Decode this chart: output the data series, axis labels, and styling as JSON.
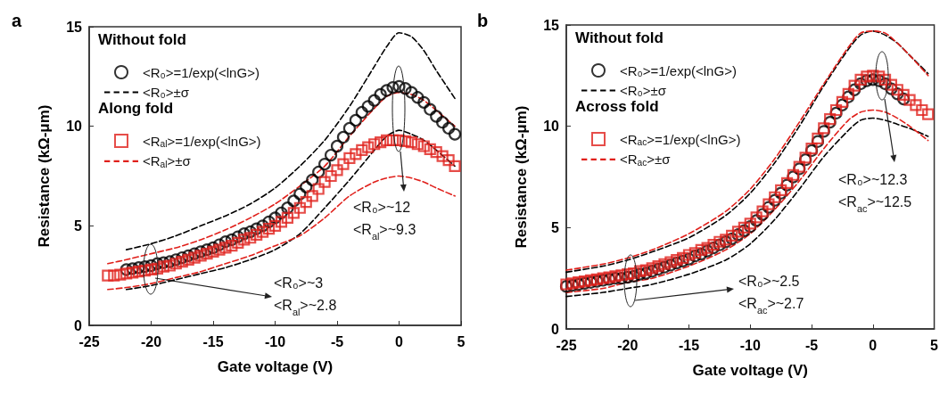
{
  "chart_data": [
    {
      "type": "scatter",
      "title": "a",
      "xlabel": "Gate voltage (V)",
      "ylabel": "Resistance (kΩ-μm)",
      "xlim": [
        -25,
        5
      ],
      "xticks": [
        -25,
        -20,
        -15,
        -10,
        -5,
        0,
        5
      ],
      "ylim": [
        0,
        15
      ],
      "yticks": [
        0,
        5,
        10,
        15
      ],
      "grid": false,
      "legend": "top left",
      "annotations": [
        "Without fold",
        "Along fold",
        "<R₀>~12\n<R$_{al}$>~9.3",
        "<R₀>~3\n<R$_{al}$>~2.8"
      ],
      "series": [
        {
          "name": "<R₀>=1/exp(<lnG>)",
          "marker": "circle",
          "color": "#000000",
          "x": [
            -22,
            -21.5,
            -21,
            -20.5,
            -20,
            -19.5,
            -19,
            -18.5,
            -18,
            -17.5,
            -17,
            -16.5,
            -16,
            -15.5,
            -15,
            -14.5,
            -14,
            -13.5,
            -13,
            -12.5,
            -12,
            -11.5,
            -11,
            -10.5,
            -10,
            -9.5,
            -9,
            -8.5,
            -8,
            -7.5,
            -7,
            -6.5,
            -6,
            -5.5,
            -5,
            -4.5,
            -4,
            -3.5,
            -3,
            -2.5,
            -2,
            -1.5,
            -1,
            -0.5,
            0,
            0.5,
            1,
            1.5,
            2,
            2.5,
            3,
            3.5,
            4,
            4.5
          ],
          "values": [
            2.8,
            2.85,
            2.9,
            2.95,
            3.0,
            3.1,
            3.15,
            3.2,
            3.3,
            3.4,
            3.5,
            3.6,
            3.7,
            3.8,
            3.9,
            4.05,
            4.2,
            4.3,
            4.45,
            4.6,
            4.7,
            4.85,
            5.0,
            5.2,
            5.4,
            5.65,
            5.9,
            6.25,
            6.6,
            6.95,
            7.3,
            7.7,
            8.1,
            8.55,
            9.0,
            9.45,
            9.9,
            10.3,
            10.7,
            11.0,
            11.3,
            11.6,
            11.8,
            11.95,
            12.0,
            11.9,
            11.7,
            11.45,
            11.2,
            10.85,
            10.5,
            10.2,
            9.9,
            9.6
          ]
        },
        {
          "name": "<R₀>±σ",
          "type": "line",
          "marker": "none",
          "line_style": "dashed",
          "color": "#000000",
          "x": [
            -22,
            -20,
            -18,
            -16,
            -14,
            -12,
            -10,
            -8,
            -6,
            -4,
            -2,
            -1,
            0,
            1,
            2,
            3,
            4.5
          ],
          "values": [
            3.8,
            4.1,
            4.5,
            5.0,
            5.5,
            6.1,
            6.9,
            8.0,
            9.3,
            11.0,
            13.0,
            14.0,
            14.7,
            14.5,
            13.8,
            12.8,
            11.4
          ]
        },
        {
          "type": "line",
          "marker": "none",
          "line_style": "dashed",
          "color": "#000000",
          "x": [
            -22,
            -20,
            -18,
            -16,
            -14,
            -12,
            -10,
            -8,
            -6,
            -4,
            -2,
            -1,
            0,
            1,
            2,
            3,
            4.5
          ],
          "values": [
            1.8,
            2.0,
            2.3,
            2.6,
            2.9,
            3.3,
            3.8,
            4.6,
            5.9,
            7.3,
            8.8,
            9.5,
            9.8,
            9.6,
            9.3,
            8.8,
            8.0
          ]
        },
        {
          "name": "<R$_{al}$>=1/exp(<lnG>)",
          "marker": "square",
          "color": "#e0201b",
          "x": [
            -23.5,
            -23,
            -22.5,
            -22,
            -21.5,
            -21,
            -20.5,
            -20,
            -19.5,
            -19,
            -18.5,
            -18,
            -17.5,
            -17,
            -16.5,
            -16,
            -15.5,
            -15,
            -14.5,
            -14,
            -13.5,
            -13,
            -12.5,
            -12,
            -11.5,
            -11,
            -10.5,
            -10,
            -9.5,
            -9,
            -8.5,
            -8,
            -7.5,
            -7,
            -6.5,
            -6,
            -5.5,
            -5,
            -4.5,
            -4,
            -3.5,
            -3,
            -2.5,
            -2,
            -1.5,
            -1,
            -0.5,
            0,
            0.5,
            1,
            1.5,
            2,
            2.5,
            3,
            3.5,
            4,
            4.5
          ],
          "values": [
            2.5,
            2.5,
            2.55,
            2.6,
            2.65,
            2.7,
            2.75,
            2.8,
            2.85,
            2.95,
            3.0,
            3.1,
            3.2,
            3.3,
            3.4,
            3.5,
            3.6,
            3.7,
            3.8,
            3.9,
            4.0,
            4.15,
            4.3,
            4.4,
            4.55,
            4.7,
            4.85,
            5.0,
            5.2,
            5.4,
            5.65,
            5.9,
            6.2,
            6.5,
            6.85,
            7.2,
            7.5,
            7.8,
            8.1,
            8.4,
            8.6,
            8.8,
            8.95,
            9.1,
            9.2,
            9.3,
            9.3,
            9.3,
            9.25,
            9.2,
            9.1,
            9.0,
            8.85,
            8.7,
            8.5,
            8.3,
            8.0
          ]
        },
        {
          "name": "<R$_{al}$>±σ",
          "type": "line",
          "marker": "none",
          "line_style": "dashed",
          "color": "#e0201b",
          "x": [
            -23.5,
            -22,
            -20,
            -18,
            -16,
            -14,
            -12,
            -10,
            -8,
            -6,
            -4,
            -2,
            -1,
            0,
            1,
            2,
            3,
            4.5
          ],
          "values": [
            3.1,
            3.3,
            3.6,
            3.9,
            4.3,
            4.8,
            5.4,
            6.1,
            7.0,
            8.0,
            9.5,
            10.9,
            11.5,
            11.7,
            11.6,
            11.3,
            10.8,
            10.0
          ]
        },
        {
          "type": "line",
          "marker": "none",
          "line_style": "dashed",
          "color": "#e0201b",
          "x": [
            -23.5,
            -22,
            -20,
            -18,
            -16,
            -14,
            -12,
            -10,
            -8,
            -6,
            -4,
            -2,
            -1,
            0,
            1,
            2,
            3,
            4.5
          ],
          "values": [
            1.8,
            1.9,
            2.1,
            2.4,
            2.7,
            3.1,
            3.5,
            4.0,
            4.5,
            5.4,
            6.5,
            7.2,
            7.4,
            7.5,
            7.4,
            7.2,
            6.9,
            6.5
          ]
        }
      ]
    },
    {
      "type": "scatter",
      "title": "b",
      "xlabel": "Gate voltage (V)",
      "ylabel": "Resistance (kΩ-μm)",
      "xlim": [
        -25,
        5
      ],
      "xticks": [
        -25,
        -20,
        -15,
        -10,
        -5,
        0,
        5
      ],
      "ylim": [
        0,
        15
      ],
      "yticks": [
        0,
        5,
        10,
        15
      ],
      "grid": false,
      "legend": "top left",
      "annotations": [
        "Without fold",
        "Across fold",
        "<R₀>~12.3\n<R$_{ac}$>~12.5",
        "<R₀>~2.5\n<R$_{ac}$>~2.7"
      ],
      "series": [
        {
          "name": "<R₀>=1/exp(<lnG>)",
          "marker": "circle",
          "color": "#000000",
          "x": [
            -25,
            -24.5,
            -24,
            -23.5,
            -23,
            -22.5,
            -22,
            -21.5,
            -21,
            -20.5,
            -20,
            -19.5,
            -19,
            -18.5,
            -18,
            -17.5,
            -17,
            -16.5,
            -16,
            -15.5,
            -15,
            -14.5,
            -14,
            -13.5,
            -13,
            -12.5,
            -12,
            -11.5,
            -11,
            -10.5,
            -10,
            -9.5,
            -9,
            -8.5,
            -8,
            -7.5,
            -7,
            -6.5,
            -6,
            -5.5,
            -5,
            -4.5,
            -4,
            -3.5,
            -3,
            -2.5,
            -2,
            -1.5,
            -1,
            -0.5,
            0,
            0.5,
            1,
            1.5,
            2,
            2.5
          ],
          "values": [
            2.1,
            2.15,
            2.2,
            2.25,
            2.3,
            2.35,
            2.4,
            2.45,
            2.5,
            2.5,
            2.55,
            2.6,
            2.7,
            2.75,
            2.85,
            2.95,
            3.05,
            3.15,
            3.25,
            3.35,
            3.45,
            3.6,
            3.7,
            3.85,
            4.0,
            4.15,
            4.3,
            4.45,
            4.65,
            4.85,
            5.05,
            5.35,
            5.65,
            6.0,
            6.35,
            6.7,
            7.1,
            7.5,
            7.9,
            8.35,
            8.8,
            9.25,
            9.75,
            10.2,
            10.65,
            11.05,
            11.45,
            11.8,
            12.1,
            12.25,
            12.3,
            12.25,
            12.1,
            11.85,
            11.6,
            11.35
          ]
        },
        {
          "name": "<R₀>±σ",
          "type": "line",
          "marker": "none",
          "line_style": "dashed",
          "color": "#000000",
          "x": [
            -25,
            -22,
            -20,
            -18,
            -15,
            -12,
            -10,
            -8,
            -6,
            -4,
            -2,
            -1,
            0,
            1,
            2,
            3,
            4.5
          ],
          "values": [
            2.8,
            3.1,
            3.4,
            3.8,
            4.5,
            5.6,
            6.7,
            8.2,
            10.0,
            12.0,
            13.8,
            14.5,
            14.7,
            14.5,
            14.1,
            13.5,
            12.6
          ]
        },
        {
          "type": "line",
          "marker": "none",
          "line_style": "dashed",
          "color": "#000000",
          "x": [
            -25,
            -22,
            -20,
            -18,
            -15,
            -12,
            -10,
            -8,
            -6,
            -4,
            -2,
            -1,
            0,
            1,
            2,
            3,
            4.5
          ],
          "values": [
            1.6,
            1.8,
            2.0,
            2.2,
            2.7,
            3.4,
            4.2,
            5.4,
            6.9,
            8.5,
            9.8,
            10.3,
            10.4,
            10.3,
            10.1,
            9.9,
            9.5
          ]
        },
        {
          "name": "<R$_{ac}$>=1/exp(<lnG>)",
          "marker": "square",
          "color": "#e0201b",
          "x": [
            -25,
            -24.5,
            -24,
            -23.5,
            -23,
            -22.5,
            -22,
            -21.5,
            -21,
            -20.5,
            -20,
            -19.5,
            -19,
            -18.5,
            -18,
            -17.5,
            -17,
            -16.5,
            -16,
            -15.5,
            -15,
            -14.5,
            -14,
            -13.5,
            -13,
            -12.5,
            -12,
            -11.5,
            -11,
            -10.5,
            -10,
            -9.5,
            -9,
            -8.5,
            -8,
            -7.5,
            -7,
            -6.5,
            -6,
            -5.5,
            -5,
            -4.5,
            -4,
            -3.5,
            -3,
            -2.5,
            -2,
            -1.5,
            -1,
            -0.5,
            0,
            0.5,
            1,
            1.5,
            2,
            2.5,
            3,
            3.5,
            4,
            4.5
          ],
          "values": [
            2.2,
            2.25,
            2.3,
            2.35,
            2.4,
            2.45,
            2.5,
            2.55,
            2.6,
            2.65,
            2.7,
            2.75,
            2.85,
            2.9,
            3.0,
            3.1,
            3.2,
            3.3,
            3.4,
            3.5,
            3.65,
            3.75,
            3.9,
            4.0,
            4.15,
            4.3,
            4.4,
            4.6,
            4.8,
            5.0,
            5.2,
            5.5,
            5.8,
            6.15,
            6.5,
            6.85,
            7.2,
            7.6,
            8.0,
            8.45,
            8.9,
            9.4,
            9.9,
            10.35,
            10.8,
            11.2,
            11.6,
            12.0,
            12.3,
            12.45,
            12.5,
            12.45,
            12.3,
            12.05,
            11.8,
            11.55,
            11.3,
            11.05,
            10.8,
            10.6
          ]
        },
        {
          "name": "<R$_{ac}$>±σ",
          "type": "line",
          "marker": "none",
          "line_style": "dashed",
          "color": "#e0201b",
          "x": [
            -25,
            -22,
            -20,
            -18,
            -15,
            -12,
            -10,
            -8,
            -6,
            -4,
            -2,
            -1,
            0,
            1,
            2,
            3,
            4.5
          ],
          "values": [
            2.9,
            3.2,
            3.5,
            3.9,
            4.7,
            5.8,
            6.9,
            8.4,
            10.2,
            12.1,
            13.9,
            14.6,
            14.7,
            14.6,
            14.1,
            13.5,
            12.5
          ]
        },
        {
          "type": "line",
          "marker": "none",
          "line_style": "dashed",
          "color": "#e0201b",
          "x": [
            -25,
            -22,
            -20,
            -18,
            -15,
            -12,
            -10,
            -8,
            -6,
            -4,
            -2,
            -1,
            0,
            1,
            2,
            3,
            4.5
          ],
          "values": [
            1.8,
            2.0,
            2.3,
            2.5,
            3.1,
            3.9,
            4.7,
            5.9,
            7.3,
            8.9,
            10.3,
            10.7,
            10.8,
            10.7,
            10.4,
            10.0,
            9.3
          ]
        }
      ]
    }
  ]
}
